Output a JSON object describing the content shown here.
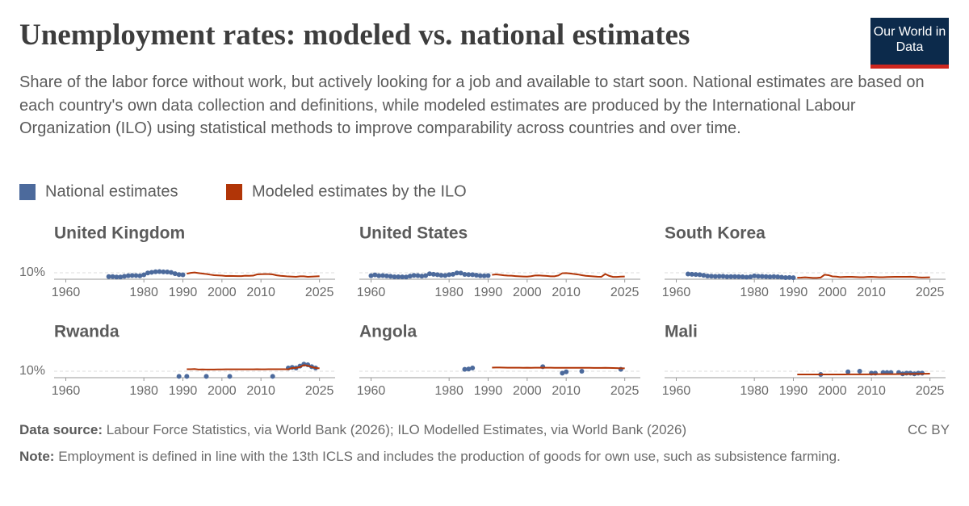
{
  "header": {
    "title": "Unemployment rates: modeled vs. national estimates",
    "subtitle": "Share of the labor force without work, but actively looking for a job and available to start soon. National estimates are based on each country's own data collection and definitions, while modeled estimates are produced by the International Labour Organization (ILO) using statistical methods to improve comparability across countries and over time.",
    "logo": "Our World in Data"
  },
  "chart_data": [
    {
      "type": "line",
      "title": "United Kingdom",
      "xlim": [
        1957,
        2029
      ],
      "ylim": [
        0,
        30
      ],
      "xticks": [
        1960,
        1980,
        1990,
        2000,
        2010,
        2025
      ],
      "yticks": [
        {
          "value": 10,
          "label": "10%"
        }
      ],
      "grid": true,
      "series": [
        {
          "name": "National estimates",
          "color": "#4c6a9c",
          "x": [
            1971,
            1972,
            1973,
            1974,
            1975,
            1976,
            1977,
            1978,
            1979,
            1980,
            1981,
            1982,
            1983,
            1984,
            1985,
            1986,
            1987,
            1988,
            1989,
            1990
          ],
          "values": [
            4,
            4,
            3.5,
            3.5,
            4.5,
            5.5,
            5.8,
            5.7,
            5.3,
            6.8,
            9.7,
            10.7,
            11.5,
            11.8,
            11.4,
            11.3,
            10.4,
            8.6,
            7.2,
            6.9
          ]
        },
        {
          "name": "Modeled estimates by the ILO",
          "color": "#b13507",
          "x": [
            1991,
            1992,
            1993,
            1994,
            1995,
            1996,
            1997,
            1998,
            1999,
            2000,
            2001,
            2002,
            2003,
            2004,
            2005,
            2006,
            2007,
            2008,
            2009,
            2010,
            2011,
            2012,
            2013,
            2014,
            2015,
            2016,
            2017,
            2018,
            2019,
            2020,
            2021,
            2022,
            2023,
            2024,
            2025
          ],
          "values": [
            8.6,
            9.8,
            10.4,
            9.5,
            8.7,
            8.1,
            7.1,
            6.3,
            6.0,
            5.6,
            5.0,
            5.2,
            5.0,
            4.8,
            4.8,
            5.4,
            5.3,
            5.6,
            7.5,
            7.8,
            8.0,
            7.9,
            7.5,
            6.1,
            5.3,
            4.8,
            4.3,
            4.0,
            3.7,
            4.5,
            4.5,
            3.7,
            4.0,
            4.3,
            4.7
          ]
        }
      ]
    },
    {
      "type": "line",
      "title": "United States",
      "xlim": [
        1957,
        2029
      ],
      "ylim": [
        0,
        30
      ],
      "xticks": [
        1960,
        1980,
        1990,
        2000,
        2010,
        2025
      ],
      "yticks": [
        10
      ],
      "grid": true,
      "series": [
        {
          "color": "#4c6a9c",
          "x": [
            1960,
            1961,
            1962,
            1963,
            1964,
            1965,
            1966,
            1967,
            1968,
            1969,
            1970,
            1971,
            1972,
            1973,
            1974,
            1975,
            1976,
            1977,
            1978,
            1979,
            1980,
            1981,
            1982,
            1983,
            1984,
            1985,
            1986,
            1987,
            1988,
            1989,
            1990
          ],
          "values": [
            5.5,
            6.7,
            5.5,
            5.7,
            5.2,
            4.5,
            3.8,
            3.8,
            3.6,
            3.5,
            4.9,
            5.9,
            5.6,
            4.9,
            5.6,
            8.5,
            7.7,
            7.1,
            6.1,
            5.8,
            7.1,
            7.6,
            9.7,
            9.6,
            7.5,
            7.2,
            7.0,
            6.2,
            5.5,
            5.3,
            5.6
          ]
        },
        {
          "color": "#b13507",
          "x": [
            1991,
            1992,
            1993,
            1994,
            1995,
            1996,
            1997,
            1998,
            1999,
            2000,
            2001,
            2002,
            2003,
            2004,
            2005,
            2006,
            2007,
            2008,
            2009,
            2010,
            2011,
            2012,
            2013,
            2014,
            2015,
            2016,
            2017,
            2018,
            2019,
            2020,
            2021,
            2022,
            2023,
            2024,
            2025
          ],
          "values": [
            6.8,
            7.5,
            6.9,
            6.1,
            5.6,
            5.4,
            4.9,
            4.5,
            4.2,
            4.0,
            4.7,
            5.8,
            6.0,
            5.5,
            5.1,
            4.6,
            4.6,
            5.8,
            9.3,
            9.6,
            8.9,
            8.1,
            7.4,
            6.2,
            5.3,
            4.9,
            4.4,
            3.9,
            3.7,
            8.1,
            5.3,
            3.6,
            3.6,
            4.0,
            4.2
          ]
        }
      ]
    },
    {
      "type": "line",
      "title": "South Korea",
      "xlim": [
        1957,
        2029
      ],
      "ylim": [
        0,
        30
      ],
      "xticks": [
        1960,
        1980,
        1990,
        2000,
        2010,
        2025
      ],
      "yticks": [
        10
      ],
      "grid": true,
      "series": [
        {
          "color": "#4c6a9c",
          "x": [
            1963,
            1964,
            1965,
            1966,
            1967,
            1968,
            1969,
            1970,
            1971,
            1972,
            1973,
            1974,
            1975,
            1976,
            1977,
            1978,
            1979,
            1980,
            1981,
            1982,
            1983,
            1984,
            1985,
            1986,
            1987,
            1988,
            1989,
            1990
          ],
          "values": [
            8.1,
            7.7,
            7.4,
            7.1,
            6.1,
            5.0,
            4.7,
            4.4,
            4.5,
            4.5,
            3.9,
            4.0,
            4.1,
            3.9,
            3.8,
            3.2,
            3.8,
            5.2,
            4.5,
            4.4,
            4.1,
            3.8,
            4.0,
            3.8,
            3.1,
            2.5,
            2.6,
            2.4
          ]
        },
        {
          "color": "#b13507",
          "x": [
            1991,
            1992,
            1993,
            1994,
            1995,
            1996,
            1997,
            1998,
            1999,
            2000,
            2001,
            2002,
            2003,
            2004,
            2005,
            2006,
            2007,
            2008,
            2009,
            2010,
            2011,
            2012,
            2013,
            2014,
            2015,
            2016,
            2017,
            2018,
            2019,
            2020,
            2021,
            2022,
            2023,
            2024,
            2025
          ],
          "values": [
            2.4,
            2.5,
            2.9,
            2.5,
            2.1,
            2.0,
            2.6,
            7.0,
            6.3,
            4.4,
            4.0,
            3.3,
            3.6,
            3.7,
            3.7,
            3.5,
            3.2,
            3.2,
            3.6,
            3.7,
            3.4,
            3.2,
            3.1,
            3.5,
            3.6,
            3.7,
            3.7,
            3.8,
            3.8,
            3.9,
            3.6,
            2.9,
            2.7,
            2.8,
            2.9
          ]
        }
      ]
    },
    {
      "type": "line",
      "title": "Rwanda",
      "xlim": [
        1957,
        2029
      ],
      "ylim": [
        0,
        30
      ],
      "xticks": [
        1960,
        1980,
        1990,
        2000,
        2010,
        2025
      ],
      "yticks": [
        {
          "value": 10,
          "label": "10%"
        }
      ],
      "grid": true,
      "series": [
        {
          "color": "#4c6a9c",
          "x": [
            1989,
            1991,
            1996,
            2002,
            2013,
            2017,
            2018,
            2019,
            2020,
            2021,
            2022,
            2023,
            2024
          ],
          "values": [
            2,
            2,
            2,
            2,
            2,
            15,
            16,
            15,
            18,
            21,
            20,
            17,
            15
          ]
        },
        {
          "color": "#b13507",
          "x": [
            1991,
            1992,
            1993,
            1994,
            1995,
            1996,
            1997,
            1998,
            1999,
            2000,
            2001,
            2002,
            2003,
            2004,
            2005,
            2006,
            2007,
            2008,
            2009,
            2010,
            2011,
            2012,
            2013,
            2014,
            2015,
            2016,
            2017,
            2018,
            2019,
            2020,
            2021,
            2022,
            2023,
            2024,
            2025
          ],
          "values": [
            13.2,
            13.2,
            13.4,
            12.6,
            12.8,
            12.6,
            12.6,
            12.6,
            12.8,
            12.8,
            12.9,
            12.9,
            13.0,
            13.0,
            13.0,
            13.0,
            13.0,
            13.0,
            13.1,
            13.0,
            13.0,
            13.1,
            13.1,
            13.2,
            13.2,
            13.2,
            13.0,
            15.0,
            15.2,
            16.5,
            19.5,
            18.5,
            16.5,
            15.0,
            14.5
          ]
        }
      ]
    },
    {
      "type": "line",
      "title": "Angola",
      "xlim": [
        1957,
        2029
      ],
      "ylim": [
        0,
        30
      ],
      "xticks": [
        1960,
        1980,
        1990,
        2000,
        2010,
        2025
      ],
      "yticks": [
        10
      ],
      "grid": true,
      "series": [
        {
          "color": "#4c6a9c",
          "x": [
            1984,
            1985,
            1986,
            2004,
            2009,
            2010,
            2014,
            2024
          ],
          "values": [
            13,
            13.5,
            15,
            17,
            7,
            9,
            10,
            13
          ]
        },
        {
          "color": "#b13507",
          "x": [
            1991,
            1992,
            1993,
            1994,
            1995,
            1996,
            1997,
            1998,
            1999,
            2000,
            2001,
            2002,
            2003,
            2004,
            2005,
            2006,
            2007,
            2008,
            2009,
            2010,
            2011,
            2012,
            2013,
            2014,
            2015,
            2016,
            2017,
            2018,
            2019,
            2020,
            2021,
            2022,
            2023,
            2024,
            2025
          ],
          "values": [
            15.6,
            15.8,
            15.8,
            15.6,
            15.4,
            15.4,
            15.5,
            15.4,
            15.3,
            15.4,
            15.3,
            15.4,
            15.4,
            15.5,
            15.4,
            15.4,
            15.3,
            15.3,
            15.3,
            15.3,
            15.3,
            15.3,
            15.3,
            15.3,
            15.3,
            15.3,
            15.2,
            15.2,
            15.2,
            15.3,
            15.2,
            15.0,
            14.8,
            14.6,
            14.5
          ]
        }
      ]
    },
    {
      "type": "line",
      "title": "Mali",
      "xlim": [
        1957,
        2029
      ],
      "ylim": [
        0,
        30
      ],
      "xticks": [
        1960,
        1980,
        1990,
        2000,
        2010,
        2025
      ],
      "yticks": [
        10
      ],
      "grid": true,
      "series": [
        {
          "color": "#4c6a9c",
          "x": [
            1997,
            2004,
            2007,
            2010,
            2011,
            2013,
            2014,
            2015,
            2017,
            2018,
            2019,
            2020,
            2021,
            2022,
            2023
          ],
          "values": [
            5,
            9,
            10,
            7,
            7,
            8,
            8,
            8,
            8,
            6,
            7,
            7,
            6,
            7,
            7
          ]
        },
        {
          "color": "#b13507",
          "x": [
            1991,
            1992,
            1993,
            1994,
            1995,
            1996,
            1997,
            1998,
            1999,
            2000,
            2001,
            2002,
            2003,
            2004,
            2005,
            2006,
            2007,
            2008,
            2009,
            2010,
            2011,
            2012,
            2013,
            2014,
            2015,
            2016,
            2017,
            2018,
            2019,
            2020,
            2021,
            2022,
            2023,
            2024,
            2025
          ],
          "values": [
            5.0,
            5.0,
            5.0,
            5.0,
            5.0,
            5.0,
            5.0,
            5.0,
            5.0,
            5.0,
            5.0,
            5.0,
            5.0,
            5.1,
            5.1,
            5.1,
            5.1,
            5.2,
            5.2,
            5.3,
            5.3,
            5.4,
            5.4,
            5.4,
            5.5,
            5.5,
            5.6,
            5.6,
            5.7,
            5.8,
            5.8,
            5.9,
            6.0,
            6.1,
            6.2
          ]
        }
      ]
    }
  ],
  "footer": {
    "source_label": "Data source:",
    "source": "Labour Force Statistics, via World Bank (2026); ILO Modelled Estimates, via World Bank (2026)",
    "license": "CC BY",
    "note_label": "Note:",
    "note": "Employment is defined in line with the 13th ICLS and includes the production of goods for own use, such as subsistence farming."
  }
}
